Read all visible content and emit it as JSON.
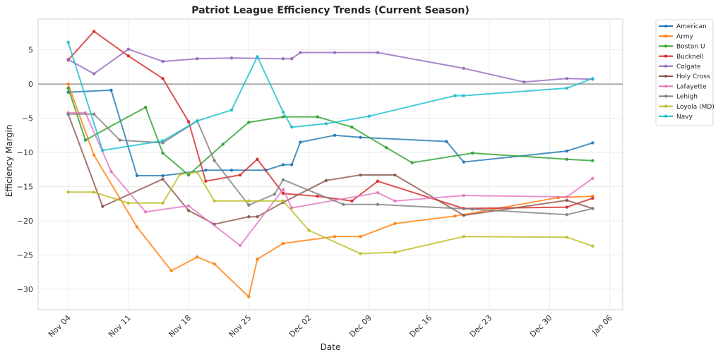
{
  "chart_data": {
    "type": "line",
    "title": "Patriot League Efficiency Trends (Current Season)",
    "xlabel": "Date",
    "ylabel": "Efficiency Margin",
    "x_ticks": [
      "Nov 04",
      "Nov 11",
      "Nov 18",
      "Nov 25",
      "Dec 02",
      "Dec 09",
      "Dec 16",
      "Dec 23",
      "Dec 30",
      "Jan 06"
    ],
    "y_ticks": [
      5,
      0,
      -5,
      -10,
      -15,
      -20,
      -25,
      -30
    ],
    "ylim": [
      -33,
      9.5
    ],
    "xlim_days": [
      -3.5,
      64.5
    ],
    "x_unit": "days since Nov 04",
    "reference_line": 0,
    "grid": true,
    "legend": "outside-top-right",
    "series": [
      {
        "name": "American",
        "color": "#1f77b4",
        "x": [
          0,
          5,
          8,
          11,
          16,
          19,
          23,
          25,
          26,
          27,
          31,
          34,
          44,
          46,
          58,
          61
        ],
        "y": [
          -1.2,
          -0.9,
          -13.4,
          -13.4,
          -12.6,
          -12.6,
          -12.6,
          -11.8,
          -11.8,
          -8.5,
          -7.5,
          -7.8,
          -8.4,
          -11.4,
          -9.8,
          -8.6
        ]
      },
      {
        "name": "Army",
        "color": "#ff7f0e",
        "x": [
          0,
          3,
          8,
          12,
          15,
          17,
          21,
          22,
          25,
          31,
          34,
          38,
          45,
          57,
          61
        ],
        "y": [
          0.0,
          -10.4,
          -20.9,
          -27.3,
          -25.3,
          -26.3,
          -31.1,
          -25.6,
          -23.3,
          -22.3,
          -22.3,
          -20.4,
          -19.3,
          -16.6,
          -16.4
        ]
      },
      {
        "name": "Boston U",
        "color": "#2ca02c",
        "x": [
          0,
          2,
          9,
          11,
          14,
          18,
          21,
          25,
          29,
          33,
          37,
          40,
          47,
          58,
          61
        ],
        "y": [
          -0.6,
          -8.2,
          -3.4,
          -10.1,
          -13.3,
          -8.8,
          -5.6,
          -4.8,
          -4.8,
          -6.3,
          -9.3,
          -11.5,
          -10.1,
          -11.0,
          -11.2
        ]
      },
      {
        "name": "Bucknell",
        "color": "#d62728",
        "x": [
          0,
          3,
          7,
          11,
          14,
          16,
          20,
          22,
          25,
          29,
          33,
          36,
          46,
          58,
          61
        ],
        "y": [
          3.5,
          7.7,
          4.1,
          0.8,
          -5.5,
          -14.2,
          -13.3,
          -11.0,
          -16.0,
          -16.4,
          -17.1,
          -14.2,
          -18.2,
          -18.0,
          -16.7
        ]
      },
      {
        "name": "Colgate",
        "color": "#9467bd",
        "x": [
          0,
          3,
          7,
          11,
          15,
          19,
          25,
          26,
          27,
          31,
          36,
          46,
          53,
          58,
          61
        ],
        "y": [
          3.6,
          1.5,
          5.1,
          3.3,
          3.7,
          3.8,
          3.7,
          3.7,
          4.6,
          4.6,
          4.6,
          2.3,
          0.3,
          0.8,
          0.7
        ]
      },
      {
        "name": "Holy Cross",
        "color": "#8c564b",
        "x": [
          0,
          4,
          11,
          14,
          17,
          21,
          22,
          25,
          30,
          34,
          38,
          46,
          58,
          61
        ],
        "y": [
          -4.4,
          -17.9,
          -13.9,
          -18.5,
          -20.5,
          -19.4,
          -19.4,
          -17.3,
          -14.1,
          -13.3,
          -13.3,
          -19.2,
          -17.0,
          -18.2
        ]
      },
      {
        "name": "Lafayette",
        "color": "#e377c2",
        "x": [
          0,
          2,
          5,
          9,
          14,
          20,
          25,
          26,
          36,
          38,
          46,
          58,
          61
        ],
        "y": [
          -4.2,
          -4.2,
          -12.8,
          -18.7,
          -17.8,
          -23.6,
          -15.4,
          -18.1,
          -15.9,
          -17.1,
          -16.3,
          -16.5,
          -13.8
        ]
      },
      {
        "name": "Lehigh",
        "color": "#7f7f7f",
        "x": [
          0,
          3,
          6,
          11,
          15,
          17,
          21,
          24,
          25,
          32,
          36,
          47,
          58,
          61
        ],
        "y": [
          -4.4,
          -4.4,
          -8.2,
          -8.6,
          -5.4,
          -11.2,
          -17.7,
          -16.1,
          -14.0,
          -17.6,
          -17.6,
          -18.3,
          -19.1,
          -18.2
        ]
      },
      {
        "name": "Loyola (MD)",
        "color": "#bcbd22",
        "x": [
          0,
          3,
          7,
          11,
          13,
          15,
          17,
          21,
          25,
          28,
          34,
          38,
          46,
          58,
          61
        ],
        "y": [
          -15.8,
          -15.8,
          -17.4,
          -17.4,
          -13.2,
          -12.9,
          -17.1,
          -17.1,
          -17.1,
          -21.4,
          -24.8,
          -24.6,
          -22.3,
          -22.4,
          -23.7
        ]
      },
      {
        "name": "Navy",
        "color": "#17becf",
        "x": [
          0,
          4,
          11,
          15,
          19,
          22,
          25,
          26,
          30,
          35,
          45,
          46,
          58,
          61
        ],
        "y": [
          6.1,
          -9.7,
          -8.3,
          -5.4,
          -3.8,
          4.0,
          -4.1,
          -6.3,
          -5.8,
          -4.7,
          -1.7,
          -1.7,
          -0.6,
          0.8
        ]
      }
    ]
  }
}
